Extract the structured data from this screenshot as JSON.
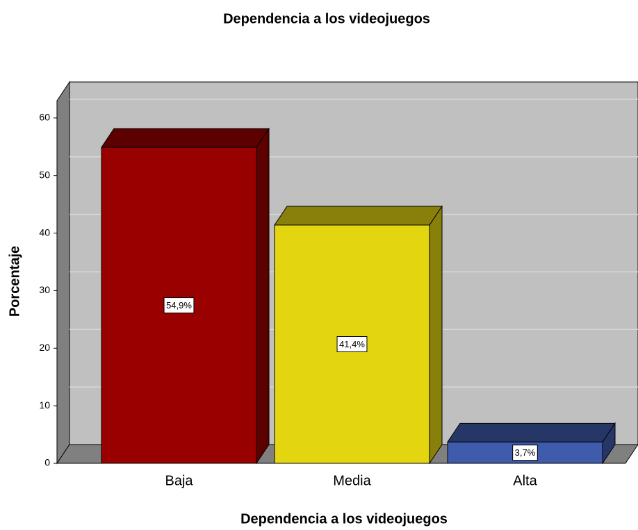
{
  "chart_data": {
    "type": "bar3d",
    "title": "Dependencia a los videojuegos",
    "xlabel": "Dependencia a los videojuegos",
    "ylabel": "Porcentaje",
    "categories": [
      "Baja",
      "Media",
      "Alta"
    ],
    "values": [
      54.9,
      41.4,
      3.7
    ],
    "value_labels": [
      "54,9%",
      "41,4%",
      "3,7%"
    ],
    "colors": [
      "#990000",
      "#e3d611",
      "#3f5bab"
    ],
    "ylim": [
      0,
      63
    ],
    "yticks": [
      0,
      10,
      20,
      30,
      40,
      50,
      60
    ],
    "grid": true
  }
}
